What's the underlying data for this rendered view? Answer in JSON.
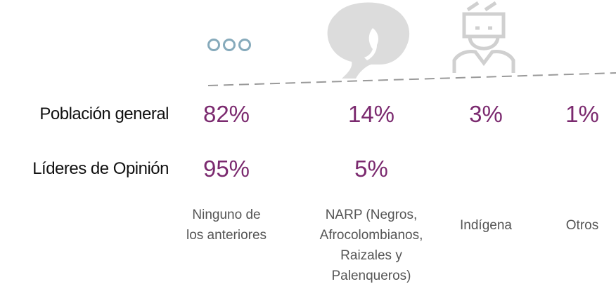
{
  "table": {
    "columns": [
      [
        "Ninguno de",
        "los anteriores"
      ],
      [
        "NARP (Negros,",
        "Afrocolombianos,",
        "Raizales y",
        "Palenqueros)"
      ],
      [
        "Indígena"
      ],
      [
        "Otros"
      ]
    ],
    "rows": [
      {
        "label": "Población general",
        "cells": [
          "82%",
          "14%",
          "3%",
          "1%"
        ]
      },
      {
        "label": "Líderes de Opinión",
        "cells": [
          "95%",
          "5%",
          null,
          null
        ]
      }
    ]
  }
}
